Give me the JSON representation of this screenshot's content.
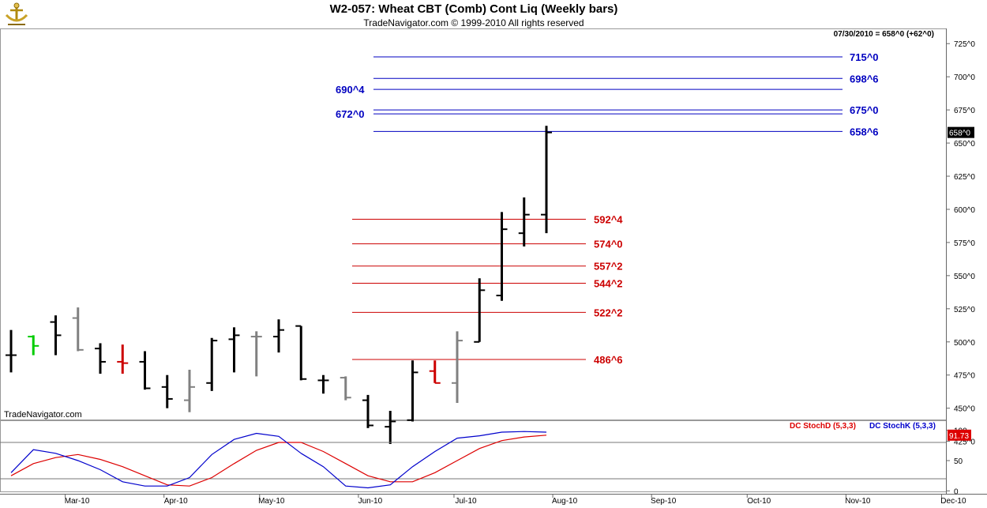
{
  "header": {
    "title": "W2-057:  Wheat CBT (Comb) Cont Liq  (Weekly bars)",
    "subtitle": "TradeNavigator.com © 1999-2010 All rights reserved",
    "info_line": "07/30/2010 = 658^0 (+62^0)",
    "watermark": "TradeNavigator.com"
  },
  "colors": {
    "up_bar": "#000000",
    "down_bar": "#808080",
    "blue_level": "#0000c0",
    "red_level": "#cc0000",
    "stochD": "#dd0000",
    "stochK": "#0000cc",
    "last_price_bg": "#000000",
    "last_stoch_bg": "#dd0000"
  },
  "chart_data": [
    {
      "type": "ohlc",
      "title": "W2-057:  Wheat CBT (Comb) Cont Liq  (Weekly bars)",
      "ylim": [
        420,
        731
      ],
      "y_ticks": [
        425,
        450,
        475,
        500,
        525,
        550,
        575,
        600,
        625,
        650,
        675,
        700,
        725
      ],
      "y_tick_labels": [
        "425^0",
        "450^0",
        "475^0",
        "500^0",
        "525^0",
        "550^0",
        "575^0",
        "600^0",
        "625^0",
        "650^0",
        "675^0",
        "700^0",
        "725^0"
      ],
      "x_labels": [
        "Mar-10",
        "Apr-10",
        "May-10",
        "Jun-10",
        "Jul-10",
        "Aug-10",
        "Sep-10",
        "Oct-10",
        "Nov-10",
        "Dec-10"
      ],
      "last_price_label": "658^0",
      "bars": [
        {
          "date": "2010-02-12",
          "open": 490,
          "high": 509,
          "low": 477,
          "close": 490,
          "color": "black"
        },
        {
          "date": "2010-02-19",
          "open": 504,
          "high": 505,
          "low": 490,
          "close": 497,
          "color": "green"
        },
        {
          "date": "2010-02-26",
          "open": 515,
          "high": 520,
          "low": 490,
          "close": 505,
          "color": "black"
        },
        {
          "date": "2010-03-05",
          "open": 518,
          "high": 526,
          "low": 493,
          "close": 494,
          "color": "gray"
        },
        {
          "date": "2010-03-12",
          "open": 495,
          "high": 499,
          "low": 476,
          "close": 485,
          "color": "black"
        },
        {
          "date": "2010-03-19",
          "open": 485,
          "high": 498,
          "low": 476,
          "close": 484,
          "color": "red"
        },
        {
          "date": "2010-03-26",
          "open": 485,
          "high": 493,
          "low": 464,
          "close": 465,
          "color": "black"
        },
        {
          "date": "2010-04-02",
          "open": 466,
          "high": 475,
          "low": 450,
          "close": 457,
          "color": "black"
        },
        {
          "date": "2010-04-09",
          "open": 456,
          "high": 479,
          "low": 447,
          "close": 466,
          "color": "gray"
        },
        {
          "date": "2010-04-16",
          "open": 469,
          "high": 503,
          "low": 463,
          "close": 501,
          "color": "black"
        },
        {
          "date": "2010-04-23",
          "open": 502,
          "high": 511,
          "low": 477,
          "close": 505,
          "color": "black"
        },
        {
          "date": "2010-04-30",
          "open": 504,
          "high": 508,
          "low": 474,
          "close": 504,
          "color": "gray"
        },
        {
          "date": "2010-05-07",
          "open": 504,
          "high": 517,
          "low": 492,
          "close": 509,
          "color": "black"
        },
        {
          "date": "2010-05-14",
          "open": 512,
          "high": 512,
          "low": 471,
          "close": 472,
          "color": "black"
        },
        {
          "date": "2010-05-21",
          "open": 471,
          "high": 475,
          "low": 461,
          "close": 471,
          "color": "black"
        },
        {
          "date": "2010-05-28",
          "open": 473,
          "high": 474,
          "low": 456,
          "close": 458,
          "color": "gray"
        },
        {
          "date": "2010-06-04",
          "open": 456,
          "high": 460,
          "low": 435,
          "close": 437,
          "color": "black"
        },
        {
          "date": "2010-06-11",
          "open": 436,
          "high": 448,
          "low": 423,
          "close": 440,
          "color": "black"
        },
        {
          "date": "2010-06-18",
          "open": 441,
          "high": 486,
          "low": 440,
          "close": 477,
          "color": "black"
        },
        {
          "date": "2010-06-25",
          "open": 478,
          "high": 486,
          "low": 469,
          "close": 469,
          "color": "red"
        },
        {
          "date": "2010-07-02",
          "open": 469,
          "high": 508,
          "low": 454,
          "close": 501,
          "color": "gray"
        },
        {
          "date": "2010-07-09",
          "open": 500,
          "high": 548,
          "low": 500,
          "close": 539,
          "color": "black"
        },
        {
          "date": "2010-07-16",
          "open": 535,
          "high": 598,
          "low": 531,
          "close": 585,
          "color": "black"
        },
        {
          "date": "2010-07-23",
          "open": 582,
          "high": 609,
          "low": 572,
          "close": 596,
          "color": "black"
        },
        {
          "date": "2010-07-30",
          "open": 596,
          "high": 663,
          "low": 582,
          "close": 658,
          "color": "black"
        }
      ],
      "levels_blue": [
        {
          "value": 715.0,
          "label": "715^0",
          "side": "right"
        },
        {
          "value": 698.75,
          "label": "698^6",
          "side": "right"
        },
        {
          "value": 690.5,
          "label": "690^4",
          "side": "left"
        },
        {
          "value": 675.0,
          "label": "675^0",
          "side": "right"
        },
        {
          "value": 672.0,
          "label": "672^0",
          "side": "left"
        },
        {
          "value": 658.75,
          "label": "658^6",
          "side": "right"
        }
      ],
      "levels_red": [
        {
          "value": 592.5,
          "label": "592^4"
        },
        {
          "value": 574.0,
          "label": "574^0"
        },
        {
          "value": 557.25,
          "label": "557^2"
        },
        {
          "value": 544.25,
          "label": "544^2"
        },
        {
          "value": 522.25,
          "label": "522^2"
        },
        {
          "value": 486.75,
          "label": "486^6"
        }
      ]
    },
    {
      "type": "line",
      "title": "",
      "ylim": [
        0,
        120
      ],
      "y_ticks": [
        0,
        50,
        100
      ],
      "y_tick_labels": [
        "0",
        "50",
        "100"
      ],
      "reference_lines": [
        20,
        80
      ],
      "last_value_label": "91.73",
      "series": [
        {
          "name": "DC StochD (5,3,3)",
          "color": "red",
          "values": [
            25,
            45,
            55,
            60,
            52,
            40,
            25,
            10,
            8,
            22,
            45,
            67,
            80,
            80,
            65,
            45,
            25,
            15,
            15,
            30,
            50,
            70,
            83,
            89,
            92
          ]
        },
        {
          "name": "DC StochK (5,3,3)",
          "color": "blue",
          "values": [
            30,
            68,
            62,
            50,
            35,
            15,
            8,
            8,
            22,
            60,
            85,
            95,
            90,
            62,
            40,
            8,
            5,
            10,
            40,
            65,
            87,
            91,
            97,
            98,
            97
          ]
        }
      ]
    }
  ]
}
